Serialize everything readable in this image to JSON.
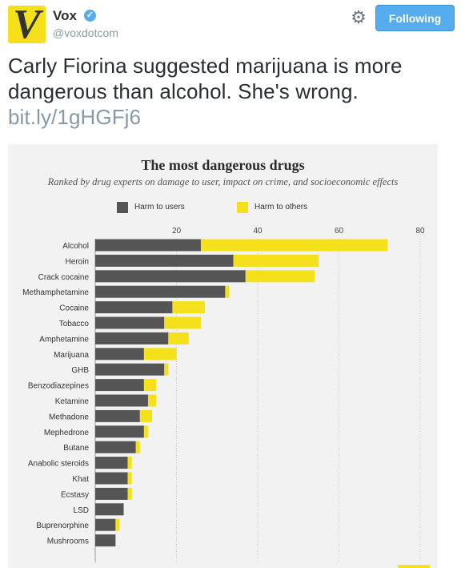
{
  "tweet": {
    "avatar_letter": "V",
    "display_name": "Vox",
    "verified_mark": "✓",
    "handle": "@voxdotcom",
    "follow_label": "Following",
    "text": "Carly Fiorina suggested marijuana is more dangerous than alcohol. She's wrong.",
    "link": "bit.ly/1gHGFj6",
    "icons": {
      "settings": "gear-icon",
      "verified": "verified-badge-icon"
    }
  },
  "colors": {
    "accent": "#55acee",
    "harm_users": "#555555",
    "harm_others": "#f5e11b"
  },
  "chart_data": {
    "type": "bar",
    "orientation": "horizontal",
    "stacked": true,
    "title": "The most dangerous drugs",
    "subtitle": "Ranked by drug experts on damage to user, impact on crime, and socioeconomic effects",
    "xlabel": "",
    "ylabel": "",
    "xlim": [
      0,
      80
    ],
    "xticks": [
      20,
      40,
      60,
      80
    ],
    "grid": true,
    "legend_position": "top",
    "categories": [
      "Alcohol",
      "Heroin",
      "Crack cocaine",
      "Methamphetamine",
      "Cocaine",
      "Tobacco",
      "Amphetamine",
      "Marijuana",
      "GHB",
      "Benzodiazepines",
      "Ketamine",
      "Methadone",
      "Mephedrone",
      "Butane",
      "Anabolic steroids",
      "Khat",
      "Ecstasy",
      "LSD",
      "Buprenorphine",
      "Mushrooms"
    ],
    "series": [
      {
        "name": "Harm to users",
        "color": "#555555",
        "values": [
          26,
          34,
          37,
          32,
          19,
          17,
          18,
          12,
          17,
          12,
          13,
          11,
          12,
          10,
          8,
          8,
          8,
          7,
          5,
          5
        ]
      },
      {
        "name": "Harm to others",
        "color": "#f5e11b",
        "values": [
          46,
          21,
          17,
          1,
          8,
          9,
          5,
          8,
          1,
          3,
          2,
          3,
          1,
          1,
          1,
          1,
          1,
          0,
          1,
          0
        ]
      }
    ]
  }
}
